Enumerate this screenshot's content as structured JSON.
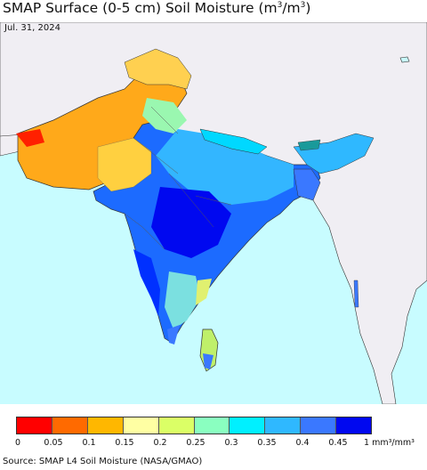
{
  "title": {
    "prefix": "SMAP Surface (0-5 cm) Soil Moisture (m",
    "sup1": "3",
    "mid": "/m",
    "sup2": "3",
    "suffix": ")"
  },
  "date": "Jul. 31, 2024",
  "legend": {
    "colors": [
      "#ff0000",
      "#ff6a00",
      "#ffb700",
      "#ffffa3",
      "#dbff66",
      "#8affc0",
      "#00f0ff",
      "#2fb8ff",
      "#3a78ff",
      "#0008f0"
    ],
    "ticks": [
      "0",
      "0.05",
      "0.1",
      "0.15",
      "0.2",
      "0.25",
      "0.3",
      "0.35",
      "0.4",
      "0.45"
    ],
    "last_tick": "1 mm³/mm³"
  },
  "source": "Source: SMAP L4 Soil Moisture (NASA/GMAO)",
  "map_colors": {
    "ocean": "#c8fcff",
    "no_data_land": "#f0eef3",
    "boundary": "#333333"
  }
}
